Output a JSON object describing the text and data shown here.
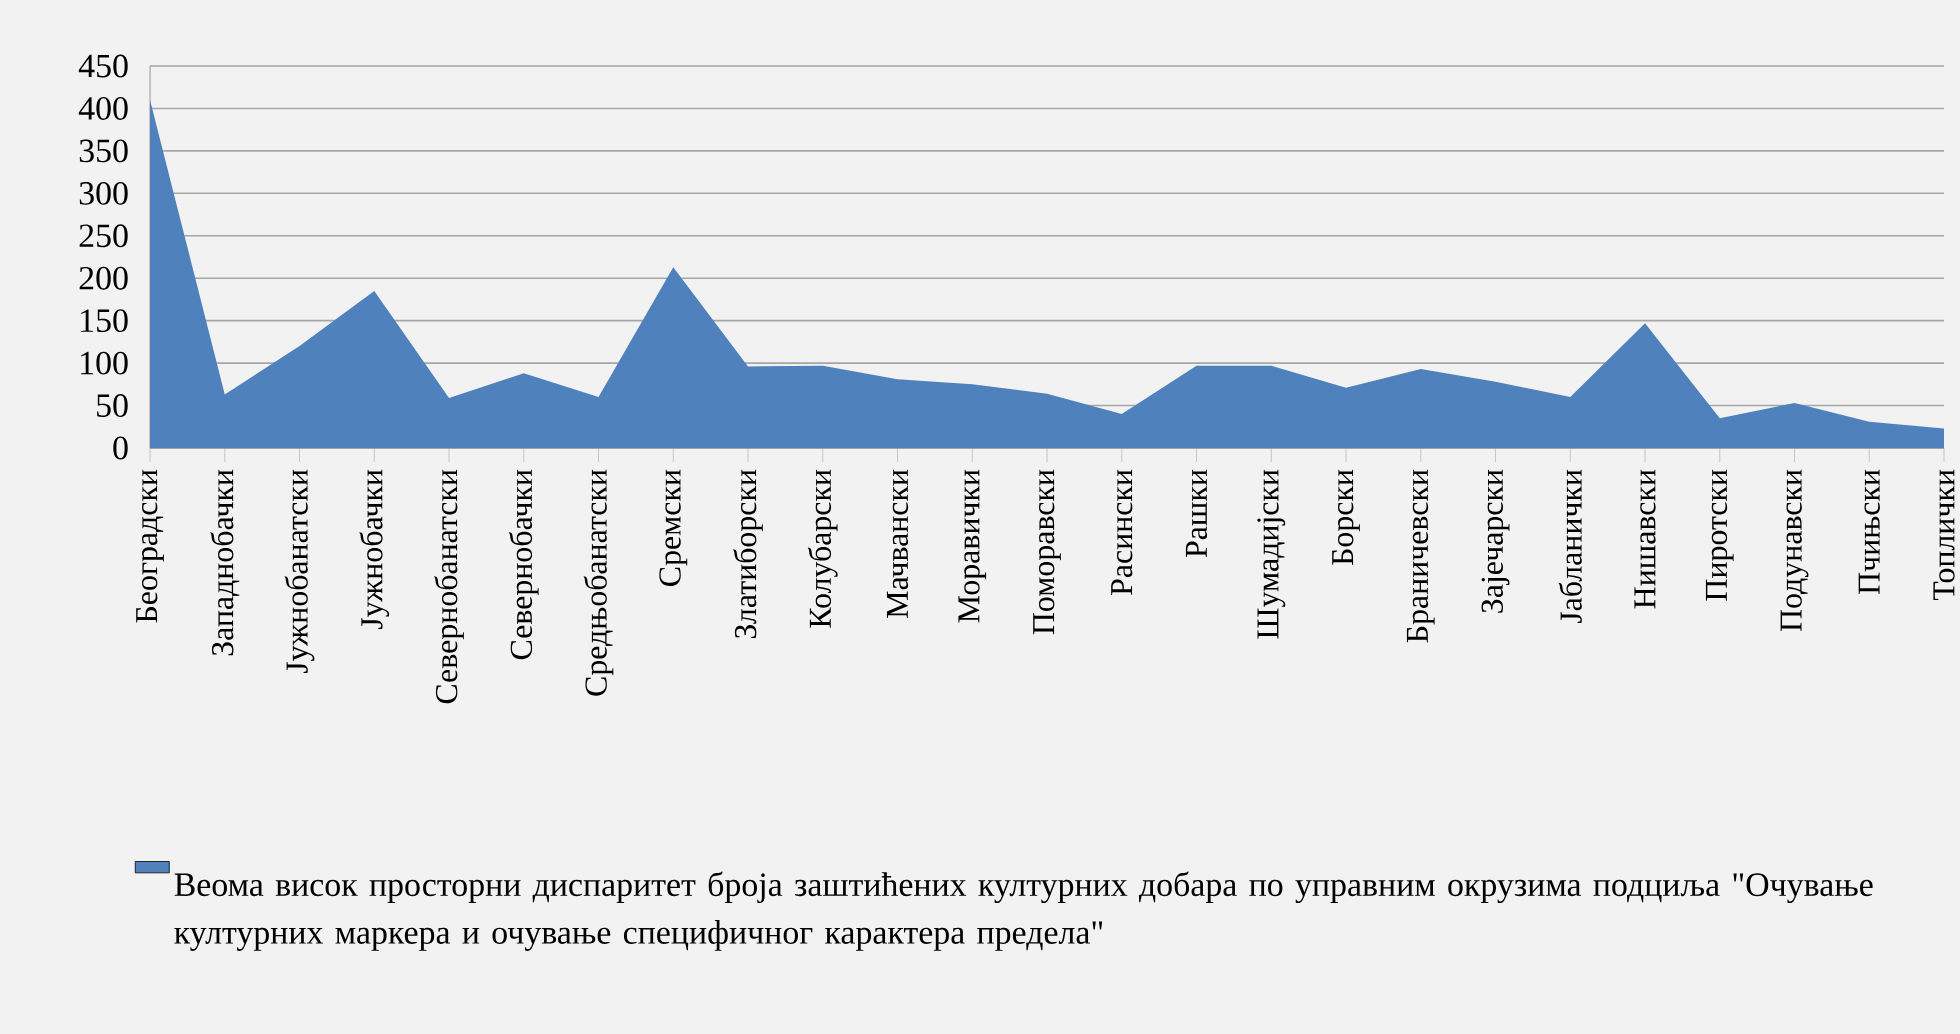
{
  "chart_data": {
    "type": "area",
    "categories": [
      "Београдски",
      "Западнобачки",
      "Јужнобанатски",
      "Јужнобачки",
      "Севернобанатски",
      "Севернобачки",
      "Средњобанатски",
      "Сремски",
      "Златиборски",
      "Колубарски",
      "Мачвански",
      "Моравички",
      "Поморавски",
      "Расински",
      "Рашки",
      "Шумадијски",
      "Борски",
      "Браничевски",
      "Зајечарски",
      "Јабланички",
      "Нишавски",
      "Пиротски",
      "Подунавски",
      "Пчињски",
      "Топлички"
    ],
    "series": [
      {
        "name": "Веома висок просторни диспаритет броја заштићених културних добара по управним окрузима подциља \"Очување културних маркера и очување специфичног карактера предела\"",
        "color": "#4f81bd",
        "values": [
          410,
          63,
          120,
          185,
          59,
          88,
          60,
          213,
          96,
          97,
          81,
          75,
          64,
          40,
          97,
          97,
          71,
          93,
          78,
          60,
          147,
          35,
          53,
          31,
          23
        ]
      }
    ],
    "ylim": [
      0,
      450
    ],
    "yticks": [
      0,
      50,
      100,
      150,
      200,
      250,
      300,
      350,
      400,
      450
    ],
    "grid": "y",
    "legend": "bottom"
  }
}
